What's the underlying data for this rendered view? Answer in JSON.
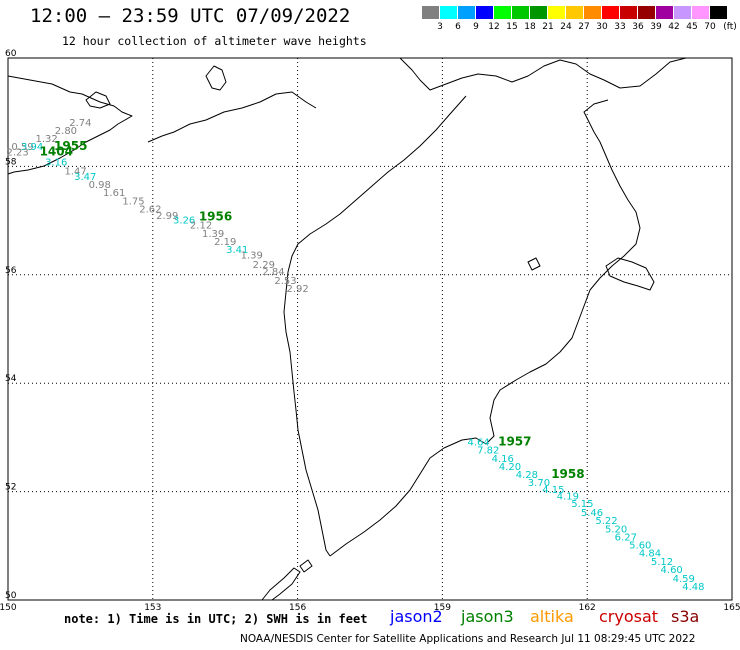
{
  "header": {
    "title": "12:00 — 23:59 UTC 07/09/2022",
    "subtitle": "12 hour collection of altimeter wave heights"
  },
  "legend": {
    "unit": "(ft)",
    "bins": [
      {
        "label": "3",
        "color": "#808080"
      },
      {
        "label": "6",
        "color": "#00ffff"
      },
      {
        "label": "9",
        "color": "#00a0ff"
      },
      {
        "label": "12",
        "color": "#0000ff"
      },
      {
        "label": "15",
        "color": "#00ff00"
      },
      {
        "label": "18",
        "color": "#00c800"
      },
      {
        "label": "21",
        "color": "#009600"
      },
      {
        "label": "24",
        "color": "#ffff00"
      },
      {
        "label": "27",
        "color": "#ffc800"
      },
      {
        "label": "30",
        "color": "#ff8c00"
      },
      {
        "label": "33",
        "color": "#ff0000"
      },
      {
        "label": "36",
        "color": "#c80000"
      },
      {
        "label": "39",
        "color": "#960000"
      },
      {
        "label": "42",
        "color": "#a000a0"
      },
      {
        "label": "45",
        "color": "#c896ff"
      },
      {
        "label": "70",
        "color": "#ff96ff"
      },
      {
        "label": "",
        "color": "#000000"
      }
    ]
  },
  "axes": {
    "lon_ticks": [
      "150",
      "153",
      "156",
      "159",
      "162",
      "165"
    ],
    "lat_ticks": [
      "60",
      "58",
      "56",
      "54",
      "52",
      "50"
    ]
  },
  "map": {
    "lon_range": [
      150,
      165
    ],
    "lat_range": [
      50,
      60
    ]
  },
  "tracks": {
    "west": {
      "times": [
        {
          "label": "1955",
          "lon": 151.3,
          "lat": 58.3,
          "color": "#008000"
        },
        {
          "label": "1404",
          "lon": 151.0,
          "lat": 58.2,
          "color": "#008000"
        },
        {
          "label": "1956",
          "lon": 154.3,
          "lat": 57.0,
          "color": "#008000"
        }
      ],
      "values": [
        {
          "text": "2.74",
          "lon": 151.5,
          "lat": 58.75,
          "color": "#808080"
        },
        {
          "text": "2.80",
          "lon": 151.2,
          "lat": 58.6,
          "color": "#808080"
        },
        {
          "text": "1.32",
          "lon": 150.8,
          "lat": 58.45,
          "color": "#808080"
        },
        {
          "text": "0.59",
          "lon": 150.3,
          "lat": 58.3,
          "color": "#808080"
        },
        {
          "text": "3.94",
          "lon": 150.5,
          "lat": 58.3,
          "color": "#00c8c8"
        },
        {
          "text": "2.23",
          "lon": 150.2,
          "lat": 58.2,
          "color": "#808080"
        },
        {
          "text": "3.16",
          "lon": 151.0,
          "lat": 58.02,
          "color": "#00c8c8"
        },
        {
          "text": "1.47",
          "lon": 151.4,
          "lat": 57.85,
          "color": "#808080"
        },
        {
          "text": "3.47",
          "lon": 151.6,
          "lat": 57.75,
          "color": "#00c8c8"
        },
        {
          "text": "0.98",
          "lon": 151.9,
          "lat": 57.6,
          "color": "#808080"
        },
        {
          "text": "1.61",
          "lon": 152.2,
          "lat": 57.45,
          "color": "#808080"
        },
        {
          "text": "1.75",
          "lon": 152.6,
          "lat": 57.3,
          "color": "#808080"
        },
        {
          "text": "2.62",
          "lon": 152.95,
          "lat": 57.15,
          "color": "#808080"
        },
        {
          "text": "2.99",
          "lon": 153.3,
          "lat": 57.03,
          "color": "#808080"
        },
        {
          "text": "3.26",
          "lon": 153.65,
          "lat": 56.95,
          "color": "#00c8c8"
        },
        {
          "text": "2.12",
          "lon": 154.0,
          "lat": 56.85,
          "color": "#808080"
        },
        {
          "text": "1.39",
          "lon": 154.25,
          "lat": 56.7,
          "color": "#808080"
        },
        {
          "text": "2.19",
          "lon": 154.5,
          "lat": 56.55,
          "color": "#808080"
        },
        {
          "text": "3.41",
          "lon": 154.75,
          "lat": 56.4,
          "color": "#00c8c8"
        },
        {
          "text": "1.39",
          "lon": 155.05,
          "lat": 56.3,
          "color": "#808080"
        },
        {
          "text": "2.29",
          "lon": 155.3,
          "lat": 56.13,
          "color": "#808080"
        },
        {
          "text": "2.84",
          "lon": 155.5,
          "lat": 56.0,
          "color": "#808080"
        },
        {
          "text": "2.53",
          "lon": 155.75,
          "lat": 55.83,
          "color": "#808080"
        },
        {
          "text": "2.92",
          "lon": 156.0,
          "lat": 55.68,
          "color": "#808080"
        }
      ]
    },
    "east": {
      "times": [
        {
          "label": "1957",
          "lon": 160.5,
          "lat": 52.85,
          "color": "#008000"
        },
        {
          "label": "1958",
          "lon": 161.6,
          "lat": 52.25,
          "color": "#008000"
        }
      ],
      "values": [
        {
          "text": "4.64",
          "lon": 159.75,
          "lat": 52.85,
          "color": "#00c8c8"
        },
        {
          "text": "7.82",
          "lon": 159.95,
          "lat": 52.7,
          "color": "#00c8c8"
        },
        {
          "text": "4.16",
          "lon": 160.25,
          "lat": 52.55,
          "color": "#00c8c8"
        },
        {
          "text": "4.20",
          "lon": 160.4,
          "lat": 52.4,
          "color": "#00c8c8"
        },
        {
          "text": "4.28",
          "lon": 160.75,
          "lat": 52.25,
          "color": "#00c8c8"
        },
        {
          "text": "3.70",
          "lon": 161.0,
          "lat": 52.1,
          "color": "#00c8c8"
        },
        {
          "text": "4.15",
          "lon": 161.3,
          "lat": 51.97,
          "color": "#00c8c8"
        },
        {
          "text": "4.19",
          "lon": 161.6,
          "lat": 51.85,
          "color": "#00c8c8"
        },
        {
          "text": "5.15",
          "lon": 161.9,
          "lat": 51.72,
          "color": "#00c8c8"
        },
        {
          "text": "5.46",
          "lon": 162.1,
          "lat": 51.55,
          "color": "#00c8c8"
        },
        {
          "text": "5.22",
          "lon": 162.4,
          "lat": 51.4,
          "color": "#00c8c8"
        },
        {
          "text": "5.20",
          "lon": 162.6,
          "lat": 51.25,
          "color": "#00c8c8"
        },
        {
          "text": "6.27",
          "lon": 162.8,
          "lat": 51.1,
          "color": "#00c8c8"
        },
        {
          "text": "5.60",
          "lon": 163.1,
          "lat": 50.95,
          "color": "#00c8c8"
        },
        {
          "text": "4.84",
          "lon": 163.3,
          "lat": 50.8,
          "color": "#00c8c8"
        },
        {
          "text": "5.12",
          "lon": 163.55,
          "lat": 50.65,
          "color": "#00c8c8"
        },
        {
          "text": "4.60",
          "lon": 163.75,
          "lat": 50.5,
          "color": "#00c8c8"
        },
        {
          "text": "4.59",
          "lon": 164.0,
          "lat": 50.33,
          "color": "#00c8c8"
        },
        {
          "text": "4.48",
          "lon": 164.2,
          "lat": 50.18,
          "color": "#00c8c8"
        }
      ]
    }
  },
  "footer": {
    "note": "note: 1) Time is in UTC; 2) SWH is in feet",
    "satellites": [
      {
        "name": "jason2",
        "color": "#0000ff"
      },
      {
        "name": "jason3",
        "color": "#008000"
      },
      {
        "name": "altika",
        "color": "#ff9900"
      },
      {
        "name": "cryosat",
        "color": "#cc0000"
      },
      {
        "name": "s3a",
        "color": "#880000"
      }
    ],
    "credit": "NOAA/NESDIS Center for Satellite Applications and Research    Jul 11 08:29:45 UTC 2022"
  }
}
